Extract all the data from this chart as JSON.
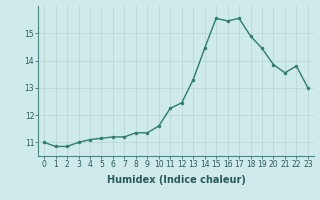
{
  "x": [
    0,
    1,
    2,
    3,
    4,
    5,
    6,
    7,
    8,
    9,
    10,
    11,
    12,
    13,
    14,
    15,
    16,
    17,
    18,
    19,
    20,
    21,
    22,
    23
  ],
  "y": [
    11.0,
    10.85,
    10.85,
    11.0,
    11.1,
    11.15,
    11.2,
    11.2,
    11.35,
    11.35,
    11.6,
    12.25,
    12.45,
    13.3,
    14.45,
    15.55,
    15.45,
    15.55,
    14.9,
    14.45,
    13.85,
    13.55,
    13.8,
    13.0
  ],
  "line_color": "#2e7d6e",
  "marker": "o",
  "marker_size": 2.0,
  "linewidth": 1.0,
  "background_color": "#ceeaea",
  "grid_color": "#b8d4d4",
  "xlabel": "Humidex (Indice chaleur)",
  "xlabel_fontsize": 7,
  "xlabel_weight": "bold",
  "ylim": [
    10.5,
    16.0
  ],
  "xlim": [
    -0.5,
    23.5
  ],
  "yticks": [
    11,
    12,
    13,
    14,
    15
  ],
  "xticks": [
    0,
    1,
    2,
    3,
    4,
    5,
    6,
    7,
    8,
    9,
    10,
    11,
    12,
    13,
    14,
    15,
    16,
    17,
    18,
    19,
    20,
    21,
    22,
    23
  ],
  "tick_fontsize": 5.5,
  "spine_color": "#4a8888"
}
